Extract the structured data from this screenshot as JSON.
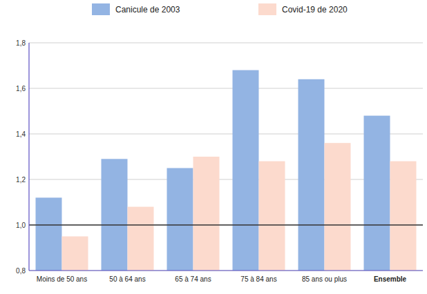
{
  "chart_data": {
    "type": "bar",
    "categories": [
      "Moins de 50 ans",
      "50 à 64 ans",
      "65 à 74 ans",
      "75 à 84 ans",
      "85 ans ou plus",
      "Ensemble"
    ],
    "series": [
      {
        "name": "Canicule de 2003",
        "color": "#93b4e3",
        "values": [
          1.12,
          1.29,
          1.25,
          1.68,
          1.64,
          1.48
        ]
      },
      {
        "name": "Covid-19 de 2020",
        "color": "#fcdacd",
        "values": [
          0.95,
          1.08,
          1.3,
          1.28,
          1.36,
          1.28
        ]
      }
    ],
    "ylim": [
      0.8,
      1.8
    ],
    "yticks": [
      {
        "value": 0.8,
        "label": "0,8"
      },
      {
        "value": 1.0,
        "label": "1,0"
      },
      {
        "value": 1.2,
        "label": "1,2"
      },
      {
        "value": 1.4,
        "label": "1,4"
      },
      {
        "value": 1.6,
        "label": "1,6"
      },
      {
        "value": 1.8,
        "label": "1,8"
      }
    ],
    "reference_line": 1.0,
    "grid": true,
    "legend": "top"
  }
}
